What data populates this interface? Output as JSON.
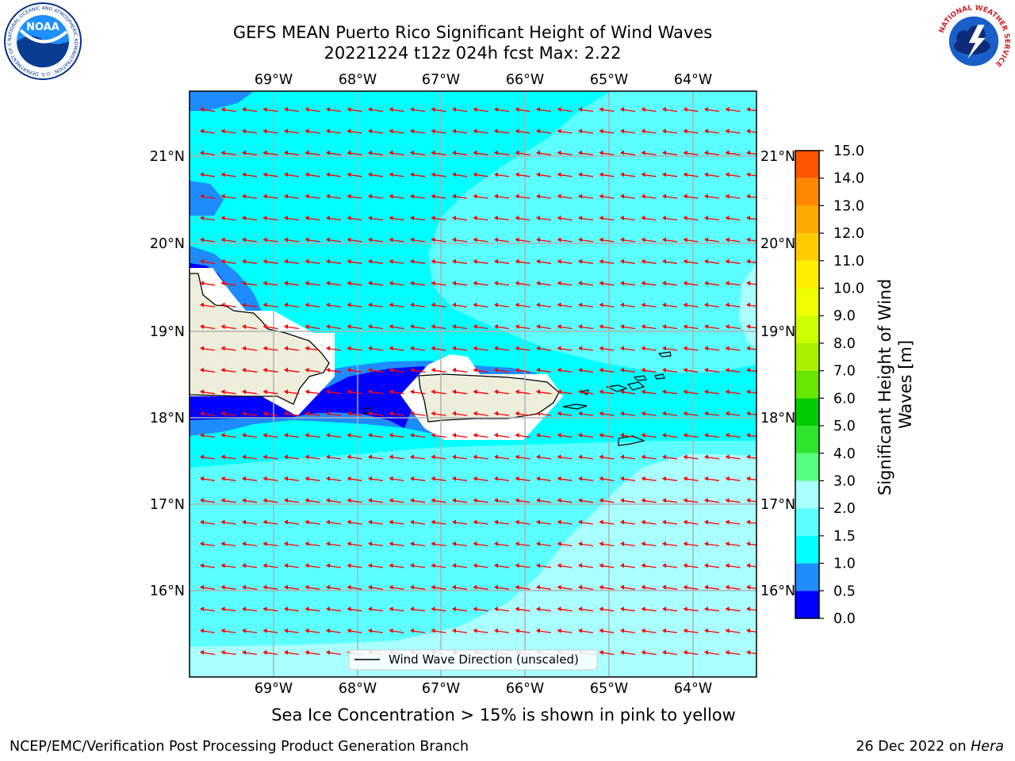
{
  "header": {
    "title_line1": "GEFS MEAN Puerto Rico Significant Height of Wind Waves",
    "title_line2": "20221224 t12z 024h fcst   Max: 2.22"
  },
  "logos": {
    "noara": "NOAA",
    "noaa_ring_text": "NATIONAL OCEANIC AND ATMOSPHERIC ADMINISTRATION · U.S. DEPARTMENT OF COMMERCE",
    "nws_ring_text": "NATIONAL WEATHER SERVICE"
  },
  "map": {
    "lon_labels": [
      "69°W",
      "68°W",
      "67°W",
      "66°W",
      "65°W",
      "64°W"
    ],
    "lat_labels": [
      "21°N",
      "20°N",
      "19°N",
      "18°N",
      "17°N",
      "16°N"
    ],
    "legend_label": "Wind Wave Direction (unscaled)",
    "land_color": "#eeeedd",
    "arrow_color": "#ff0000",
    "grid_color": "#b0b0b0"
  },
  "colorbar": {
    "label_line1": "Significant Height of Wind",
    "label_line2": "Waves [m]",
    "ticks": [
      "0.0",
      "0.5",
      "1.0",
      "1.5",
      "2.0",
      "3.0",
      "4.0",
      "5.0",
      "6.0",
      "7.0",
      "8.0",
      "9.0",
      "10.0",
      "11.0",
      "12.0",
      "13.0",
      "14.0",
      "15.0"
    ],
    "colors": [
      "#0000ff",
      "#1e8cff",
      "#00ffff",
      "#5cffff",
      "#aaffff",
      "#55ff80",
      "#2ee52e",
      "#00cc00",
      "#66e600",
      "#aaee00",
      "#ccff00",
      "#eeff00",
      "#ffee00",
      "#ffcc00",
      "#ffaa00",
      "#ff8800",
      "#ff5500",
      "#ff2a00",
      "#ff0000"
    ]
  },
  "footer": {
    "caption": "Sea Ice Concentration > 15% is shown in pink to yellow",
    "credit": "NCEP/EMC/Verification Post Processing Product Generation Branch",
    "date": "26 Dec 2022 on ",
    "host": "Hera"
  }
}
